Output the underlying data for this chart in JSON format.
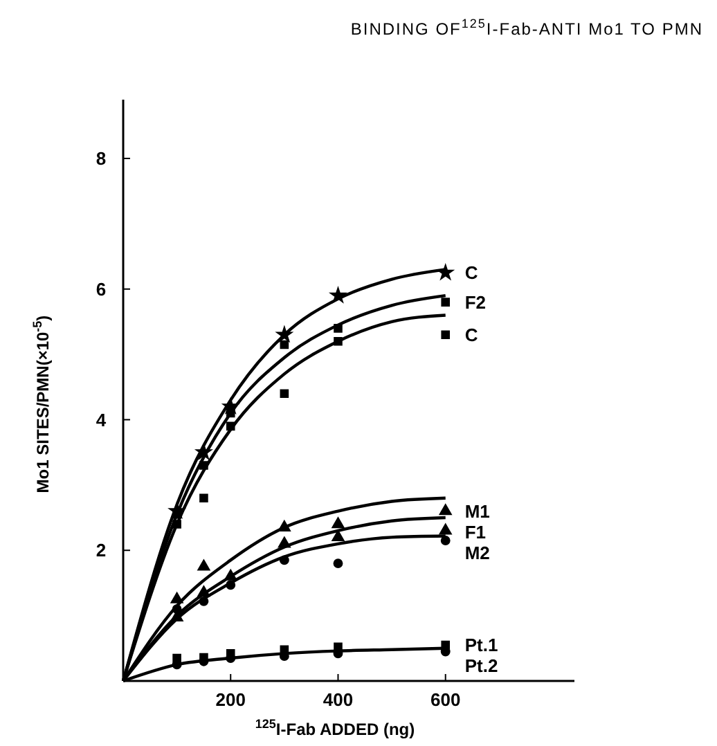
{
  "chart_data": {
    "type": "scatter",
    "title": "BINDING OF$^{125}$I-Fab-ANTI Mo1 TO PMN",
    "xlabel": "$^{125}$I-Fab ADDED (ng)",
    "ylabel": "Mo1 SITES/PMN(×10$^{-5}$)",
    "xlim": [
      0,
      840
    ],
    "ylim": [
      0,
      8.9
    ],
    "xticks": [
      200,
      400,
      600
    ],
    "yticks": [
      2,
      4,
      6,
      8
    ],
    "grid": false,
    "series": [
      {
        "type": "line",
        "color": "#000000",
        "line_style": "solid",
        "x": [
          0,
          100,
          200,
          300,
          400,
          500,
          600
        ],
        "values": [
          0,
          2.7,
          4.3,
          5.3,
          5.85,
          6.15,
          6.3
        ]
      },
      {
        "type": "line",
        "color": "#000000",
        "line_style": "solid",
        "x": [
          0,
          100,
          200,
          300,
          400,
          500,
          600
        ],
        "values": [
          0,
          2.55,
          4.1,
          4.95,
          5.45,
          5.75,
          5.9
        ]
      },
      {
        "type": "line",
        "color": "#000000",
        "line_style": "solid",
        "x": [
          0,
          100,
          200,
          300,
          400,
          500,
          600
        ],
        "values": [
          0,
          2.4,
          3.85,
          4.7,
          5.2,
          5.5,
          5.6
        ]
      },
      {
        "type": "line",
        "color": "#000000",
        "line_style": "solid",
        "x": [
          0,
          100,
          200,
          300,
          400,
          500,
          600
        ],
        "values": [
          0,
          1.15,
          1.85,
          2.35,
          2.6,
          2.75,
          2.8
        ]
      },
      {
        "type": "line",
        "color": "#000000",
        "line_style": "solid",
        "x": [
          0,
          100,
          200,
          300,
          400,
          500,
          600
        ],
        "values": [
          0,
          1.0,
          1.6,
          2.05,
          2.3,
          2.45,
          2.5
        ]
      },
      {
        "type": "line",
        "color": "#000000",
        "line_style": "solid",
        "x": [
          0,
          100,
          200,
          300,
          400,
          500,
          600
        ],
        "values": [
          0,
          0.95,
          1.5,
          1.9,
          2.1,
          2.2,
          2.22
        ]
      },
      {
        "type": "line",
        "color": "#000000",
        "line_style": "solid",
        "x": [
          0,
          100,
          200,
          300,
          400,
          500,
          600
        ],
        "values": [
          0,
          0.25,
          0.35,
          0.42,
          0.46,
          0.48,
          0.5
        ]
      },
      {
        "name": "C",
        "color": "#000000",
        "marker": "star",
        "x": [
          100,
          150,
          200,
          300,
          400,
          600
        ],
        "values": [
          2.6,
          3.5,
          4.2,
          5.3,
          5.9,
          6.25
        ]
      },
      {
        "name": "F2",
        "color": "#000000",
        "marker": "square",
        "x": [
          100,
          150,
          200,
          300,
          400,
          600
        ],
        "values": [
          2.55,
          3.3,
          4.1,
          5.15,
          5.4,
          5.8
        ]
      },
      {
        "name": "C",
        "color": "#000000",
        "marker": "square",
        "x": [
          100,
          150,
          200,
          300,
          400,
          600
        ],
        "values": [
          2.4,
          2.8,
          3.9,
          4.4,
          5.2,
          5.3
        ]
      },
      {
        "name": "M1",
        "color": "#000000",
        "marker": "triangle",
        "x": [
          100,
          150,
          300,
          400,
          600
        ],
        "values": [
          1.25,
          1.75,
          2.35,
          2.4,
          2.6
        ]
      },
      {
        "name": "F1",
        "color": "#000000",
        "marker": "triangle",
        "x": [
          100,
          150,
          200,
          300,
          400,
          600
        ],
        "values": [
          0.97,
          1.35,
          1.6,
          2.1,
          2.2,
          2.3
        ]
      },
      {
        "name": "M2",
        "color": "#000000",
        "marker": "circle",
        "x": [
          100,
          150,
          200,
          300,
          400,
          600
        ],
        "values": [
          1.1,
          1.22,
          1.47,
          1.85,
          1.8,
          2.15
        ]
      },
      {
        "name": "Pt.1",
        "color": "#000000",
        "marker": "square",
        "x": [
          100,
          150,
          200,
          300,
          400,
          600
        ],
        "values": [
          0.35,
          0.36,
          0.42,
          0.48,
          0.52,
          0.55
        ]
      },
      {
        "name": "Pt.2",
        "color": "#000000",
        "marker": "circle",
        "x": [
          100,
          150,
          200,
          300,
          400,
          600
        ],
        "values": [
          0.25,
          0.3,
          0.35,
          0.38,
          0.42,
          0.45
        ]
      }
    ]
  }
}
